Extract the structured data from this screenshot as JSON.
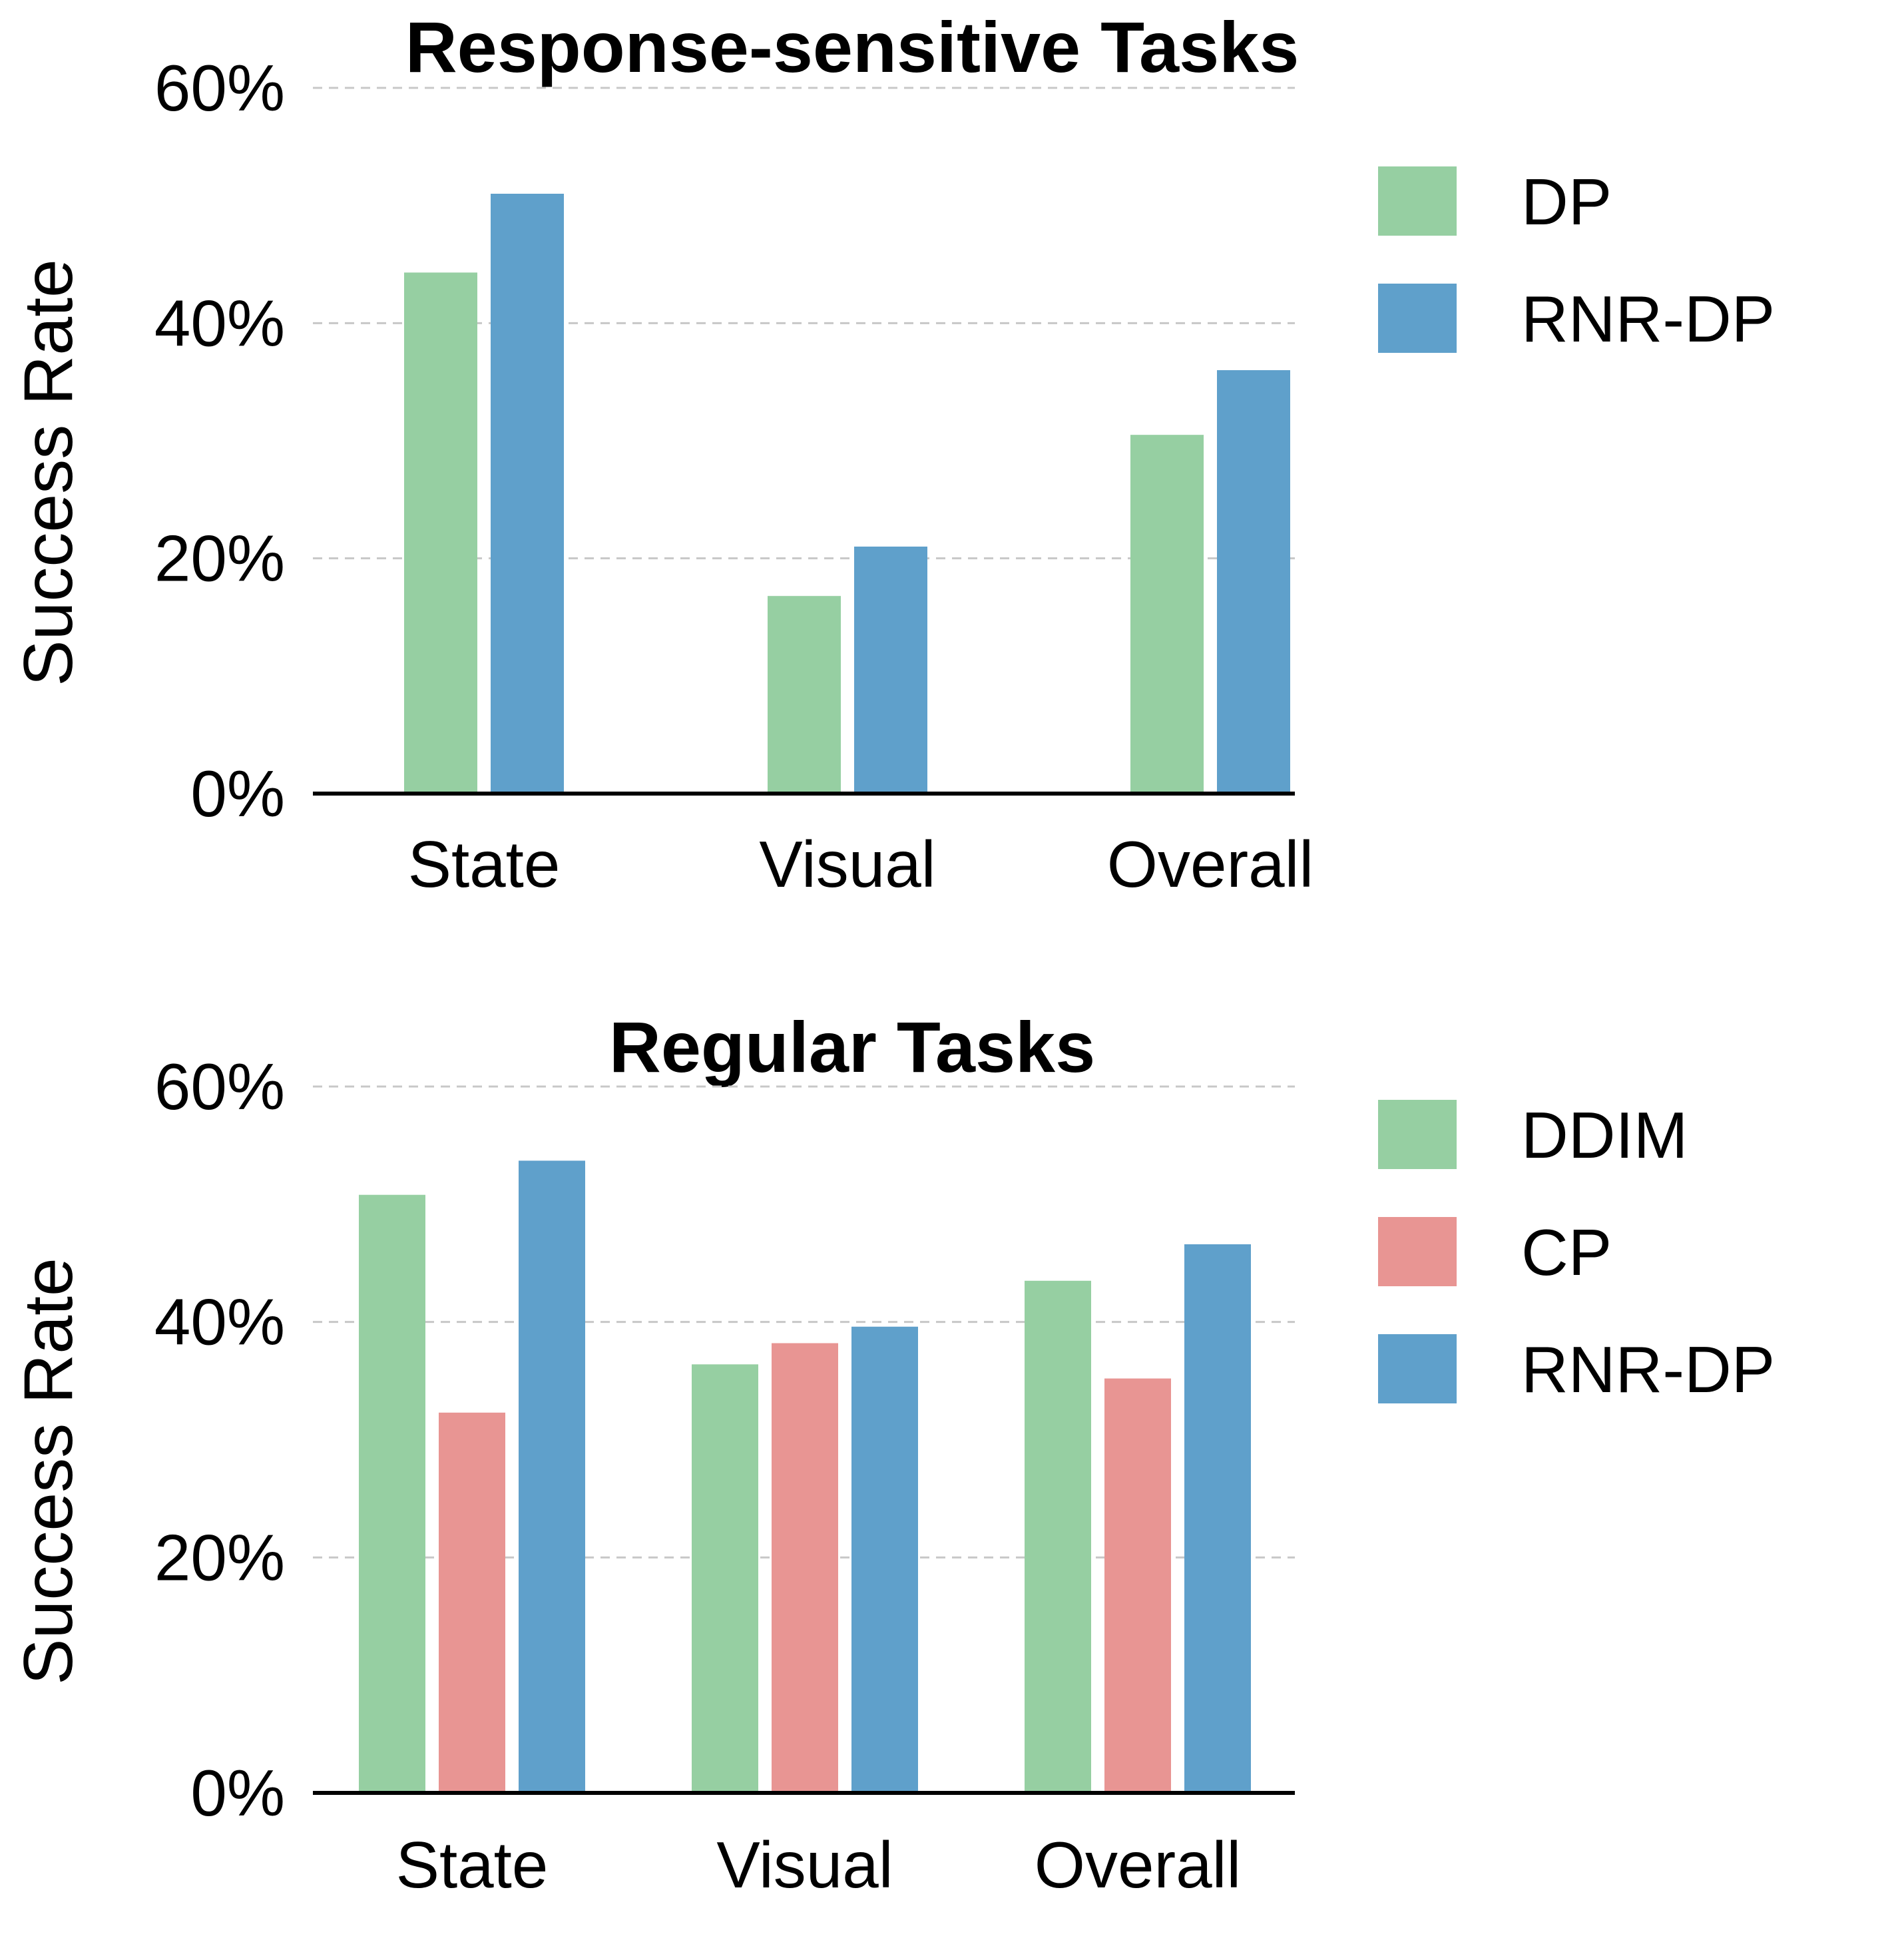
{
  "colors": {
    "green": "#96cfa2",
    "blue": "#5fa0cb",
    "red": "#e89593",
    "grid": "#c8c8c8",
    "axis": "#000000"
  },
  "chart_data": [
    {
      "type": "bar",
      "title": "Response-sensitive Tasks",
      "ylabel": "Success Rate",
      "xlabel": "",
      "categories": [
        "State",
        "Visual",
        "Overall"
      ],
      "ylim": [
        0,
        60
      ],
      "yticks": [
        "0%",
        "20%",
        "40%",
        "60%"
      ],
      "grid": "horizontal-dashed",
      "legend_position": "right",
      "series": [
        {
          "name": "DP",
          "color": "#96cfa2",
          "values": [
            44.3,
            16.8,
            30.5
          ]
        },
        {
          "name": "RNR-DP",
          "color": "#5fa0cb",
          "values": [
            51.0,
            21.0,
            36.0
          ]
        }
      ]
    },
    {
      "type": "bar",
      "title": "Regular Tasks",
      "ylabel": "Success Rate",
      "xlabel": "",
      "categories": [
        "State",
        "Visual",
        "Overall"
      ],
      "ylim": [
        0,
        60
      ],
      "yticks": [
        "0%",
        "20%",
        "40%",
        "60%"
      ],
      "grid": "horizontal-dashed",
      "legend_position": "right",
      "series": [
        {
          "name": "DDIM",
          "color": "#96cfa2",
          "values": [
            50.8,
            36.4,
            43.5
          ]
        },
        {
          "name": "CP",
          "color": "#e89593",
          "values": [
            32.3,
            38.2,
            35.2
          ]
        },
        {
          "name": "RNR-DP",
          "color": "#5fa0cb",
          "values": [
            53.7,
            39.6,
            46.6
          ]
        }
      ]
    }
  ]
}
